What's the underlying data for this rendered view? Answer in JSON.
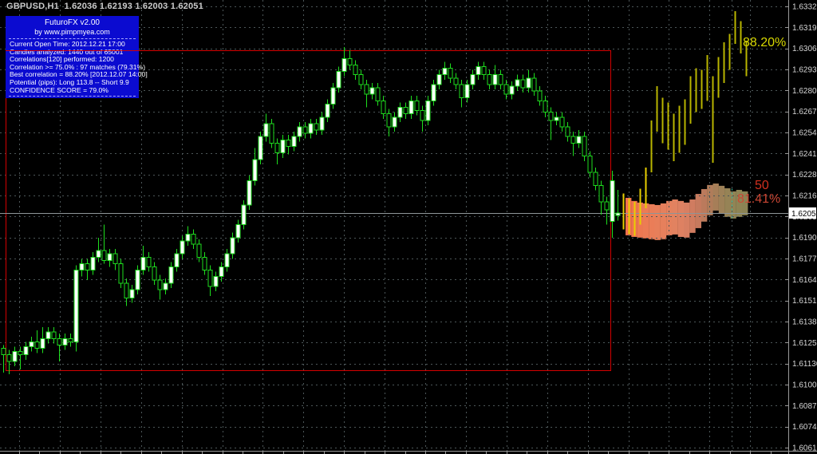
{
  "window": {
    "title": "GBPUSD,H1  1.62036 1.62193 1.62003 1.62051"
  },
  "panel": {
    "title": "FuturoFX v2.00",
    "subtitle": "by www.pimpmyea.com",
    "lines": [
      "Current Open Time: 2012.12.21 17:00",
      "Candles analyzed: 1440 out of 65001",
      "Correlations[120] performed: 1200",
      "Correlation >= 75.0% : 97 matches (79.31%)",
      "Best correlation = 88.20% [2012.12.07 14:00]",
      "Potential (pips): Long 113.8 -- Short 9.9",
      "CONFIDENCE SCORE = 79.0%"
    ],
    "bg_color": "#0b0bd0",
    "text_color": "#ffffff"
  },
  "labels": {
    "best_match_pct": "88.20%",
    "fifty_level": "50",
    "current_match_pct": "81.41%",
    "best_match_color": "#d8d800",
    "fifty_color": "#d3301e",
    "current_match_color": "#cd4734"
  },
  "colors": {
    "background": "#000000",
    "grid": "#4c5658",
    "candle_outline": "#1ede1e",
    "bull_fill": "#ffffff",
    "bear_fill": "#000000",
    "forecast_near": "#e8cf00",
    "forecast_far": "#b9b500",
    "red_box": "#d40000",
    "current_price_line": "#8e9598",
    "axis_line": "#9a9a9a",
    "axis_text": "#d6d6d6",
    "price_box_bg": "#ffffff",
    "price_box_text": "#000000",
    "band_marker_teal": "#2fbfa6"
  },
  "chart_data": {
    "type": "candlestick",
    "symbol": "GBPUSD",
    "timeframe": "H1",
    "title": "GBPUSD,H1",
    "legend_position": "none",
    "grid": true,
    "price_axis": {
      "top_price": 1.6332,
      "bottom_price": 1.6061,
      "current_price": 1.62051,
      "current_price_label": "1.62051",
      "labels": [
        "1.63320",
        "1.63190",
        "1.63060",
        "1.62930",
        "1.62800",
        "1.62675",
        "1.62545",
        "1.62415",
        "1.62285",
        "1.62160",
        "1.62030",
        "1.61900",
        "1.61770",
        "1.61645",
        "1.61515",
        "1.61385",
        "1.61255",
        "1.61130",
        "1.61000",
        "1.60870",
        "1.60740",
        "1.60610"
      ]
    },
    "ohlc": [
      [
        1.6122,
        1.6124,
        1.6107,
        1.6118
      ],
      [
        1.6118,
        1.6121,
        1.6106,
        1.6114
      ],
      [
        1.6114,
        1.6123,
        1.6111,
        1.612
      ],
      [
        1.612,
        1.6123,
        1.6109,
        1.6118
      ],
      [
        1.6118,
        1.6126,
        1.6115,
        1.6123
      ],
      [
        1.6123,
        1.6129,
        1.612,
        1.6126
      ],
      [
        1.6126,
        1.6133,
        1.6119,
        1.6122
      ],
      [
        1.6122,
        1.6135,
        1.6119,
        1.6128
      ],
      [
        1.6128,
        1.6135,
        1.6125,
        1.6132
      ],
      [
        1.6132,
        1.6135,
        1.6125,
        1.6128
      ],
      [
        1.6128,
        1.6131,
        1.6114,
        1.6124
      ],
      [
        1.6124,
        1.6131,
        1.6121,
        1.6128
      ],
      [
        1.6128,
        1.6131,
        1.6123,
        1.6126
      ],
      [
        1.6126,
        1.6173,
        1.612,
        1.617
      ],
      [
        1.617,
        1.6177,
        1.6166,
        1.6174
      ],
      [
        1.6174,
        1.6177,
        1.6164,
        1.617
      ],
      [
        1.617,
        1.6181,
        1.6167,
        1.6178
      ],
      [
        1.6178,
        1.619,
        1.6175,
        1.6182
      ],
      [
        1.6182,
        1.6198,
        1.6174,
        1.6176
      ],
      [
        1.6176,
        1.6183,
        1.6172,
        1.618
      ],
      [
        1.618,
        1.6183,
        1.617,
        1.6174
      ],
      [
        1.6174,
        1.6177,
        1.6159,
        1.6162
      ],
      [
        1.6162,
        1.6165,
        1.6148,
        1.6153
      ],
      [
        1.6153,
        1.6161,
        1.615,
        1.6158
      ],
      [
        1.6158,
        1.6173,
        1.6155,
        1.617
      ],
      [
        1.617,
        1.6185,
        1.6167,
        1.6178
      ],
      [
        1.6178,
        1.6181,
        1.6169,
        1.6172
      ],
      [
        1.6172,
        1.6175,
        1.6161,
        1.6164
      ],
      [
        1.6164,
        1.6167,
        1.6152,
        1.6158
      ],
      [
        1.6158,
        1.6165,
        1.6155,
        1.6162
      ],
      [
        1.6162,
        1.6175,
        1.6159,
        1.6172
      ],
      [
        1.6172,
        1.6183,
        1.6169,
        1.618
      ],
      [
        1.618,
        1.6191,
        1.6177,
        1.6188
      ],
      [
        1.6188,
        1.6197,
        1.6185,
        1.6192
      ],
      [
        1.6192,
        1.6195,
        1.6183,
        1.6186
      ],
      [
        1.6186,
        1.6189,
        1.6175,
        1.6178
      ],
      [
        1.6178,
        1.6181,
        1.6167,
        1.617
      ],
      [
        1.617,
        1.6173,
        1.6154,
        1.616
      ],
      [
        1.616,
        1.6169,
        1.6157,
        1.6166
      ],
      [
        1.6166,
        1.6175,
        1.6163,
        1.6172
      ],
      [
        1.6172,
        1.6183,
        1.6169,
        1.618
      ],
      [
        1.618,
        1.6193,
        1.6177,
        1.619
      ],
      [
        1.619,
        1.6201,
        1.6187,
        1.6198
      ],
      [
        1.6198,
        1.6213,
        1.6195,
        1.621
      ],
      [
        1.621,
        1.6228,
        1.6207,
        1.6225
      ],
      [
        1.6225,
        1.6245,
        1.6222,
        1.6238
      ],
      [
        1.6238,
        1.6255,
        1.6235,
        1.6252
      ],
      [
        1.6252,
        1.6266,
        1.6249,
        1.626
      ],
      [
        1.626,
        1.6263,
        1.6245,
        1.6248
      ],
      [
        1.6248,
        1.6251,
        1.6235,
        1.6242
      ],
      [
        1.6242,
        1.6253,
        1.6239,
        1.625
      ],
      [
        1.625,
        1.6253,
        1.6241,
        1.6246
      ],
      [
        1.6246,
        1.6255,
        1.6243,
        1.6252
      ],
      [
        1.6252,
        1.6261,
        1.6249,
        1.6258
      ],
      [
        1.6258,
        1.6261,
        1.6251,
        1.6254
      ],
      [
        1.6254,
        1.6263,
        1.6251,
        1.626
      ],
      [
        1.626,
        1.6263,
        1.6253,
        1.6256
      ],
      [
        1.6256,
        1.6267,
        1.6253,
        1.6264
      ],
      [
        1.6264,
        1.6275,
        1.6261,
        1.6272
      ],
      [
        1.6272,
        1.6285,
        1.6269,
        1.6282
      ],
      [
        1.6282,
        1.6295,
        1.6279,
        1.6292
      ],
      [
        1.6292,
        1.6307,
        1.6289,
        1.63
      ],
      [
        1.63,
        1.6305,
        1.6293,
        1.6296
      ],
      [
        1.6296,
        1.6299,
        1.6287,
        1.629
      ],
      [
        1.629,
        1.6293,
        1.6281,
        1.6284
      ],
      [
        1.6284,
        1.6287,
        1.627,
        1.6278
      ],
      [
        1.6278,
        1.6285,
        1.6275,
        1.6282
      ],
      [
        1.6282,
        1.6285,
        1.6271,
        1.6274
      ],
      [
        1.6274,
        1.6277,
        1.6263,
        1.6266
      ],
      [
        1.6266,
        1.6269,
        1.6252,
        1.6258
      ],
      [
        1.6258,
        1.6267,
        1.6255,
        1.6264
      ],
      [
        1.6264,
        1.6273,
        1.6261,
        1.627
      ],
      [
        1.627,
        1.6273,
        1.6263,
        1.6266
      ],
      [
        1.6266,
        1.6277,
        1.6263,
        1.6274
      ],
      [
        1.6274,
        1.6277,
        1.6265,
        1.6268
      ],
      [
        1.6268,
        1.6271,
        1.6255,
        1.6262
      ],
      [
        1.6262,
        1.6277,
        1.6259,
        1.6274
      ],
      [
        1.6274,
        1.6287,
        1.6271,
        1.6284
      ],
      [
        1.6284,
        1.6293,
        1.6281,
        1.629
      ],
      [
        1.629,
        1.6298,
        1.6287,
        1.6294
      ],
      [
        1.6294,
        1.6297,
        1.6285,
        1.6288
      ],
      [
        1.6288,
        1.6291,
        1.6281,
        1.6284
      ],
      [
        1.6284,
        1.6287,
        1.627,
        1.6276
      ],
      [
        1.6276,
        1.6287,
        1.6273,
        1.6284
      ],
      [
        1.6284,
        1.6293,
        1.6281,
        1.629
      ],
      [
        1.629,
        1.6298,
        1.6287,
        1.6295
      ],
      [
        1.6295,
        1.6298,
        1.6287,
        1.629
      ],
      [
        1.629,
        1.6293,
        1.6281,
        1.6284
      ],
      [
        1.6284,
        1.6296,
        1.6281,
        1.629
      ],
      [
        1.629,
        1.6293,
        1.6281,
        1.6284
      ],
      [
        1.6284,
        1.6287,
        1.6275,
        1.6278
      ],
      [
        1.6278,
        1.6286,
        1.6275,
        1.6283
      ],
      [
        1.6283,
        1.629,
        1.628,
        1.6287
      ],
      [
        1.6287,
        1.629,
        1.6279,
        1.6282
      ],
      [
        1.6282,
        1.6293,
        1.6279,
        1.6288
      ],
      [
        1.6288,
        1.6291,
        1.6277,
        1.628
      ],
      [
        1.628,
        1.6283,
        1.6271,
        1.6274
      ],
      [
        1.6274,
        1.6277,
        1.6264,
        1.6267
      ],
      [
        1.6267,
        1.627,
        1.625,
        1.6262
      ],
      [
        1.6262,
        1.6267,
        1.6259,
        1.6264
      ],
      [
        1.6264,
        1.6267,
        1.6255,
        1.6258
      ],
      [
        1.6258,
        1.6261,
        1.6249,
        1.6252
      ],
      [
        1.6252,
        1.6255,
        1.624,
        1.6248
      ],
      [
        1.6248,
        1.6256,
        1.6245,
        1.6252
      ],
      [
        1.6252,
        1.6255,
        1.6237,
        1.624
      ],
      [
        1.624,
        1.6243,
        1.6227,
        1.623
      ],
      [
        1.623,
        1.6233,
        1.6219,
        1.6222
      ],
      [
        1.6222,
        1.6225,
        1.6204,
        1.6212
      ],
      [
        1.6212,
        1.6215,
        1.6198,
        1.6207
      ],
      [
        1.62,
        1.6231,
        1.619,
        1.6225
      ],
      [
        1.62036,
        1.62193,
        1.62003,
        1.62051
      ]
    ],
    "forecast_bars": [
      [
        1.6217,
        1.6195
      ],
      [
        1.6214,
        1.6192
      ],
      [
        1.6212,
        1.6191
      ],
      [
        1.622,
        1.6198
      ],
      [
        1.6233,
        1.6208
      ],
      [
        1.6262,
        1.623
      ],
      [
        1.6283,
        1.6255
      ],
      [
        1.6276,
        1.6248
      ],
      [
        1.6273,
        1.6244
      ],
      [
        1.6266,
        1.6237
      ],
      [
        1.6271,
        1.6242
      ],
      [
        1.6275,
        1.6247
      ],
      [
        1.6289,
        1.626
      ],
      [
        1.6294,
        1.6267
      ],
      [
        1.6293,
        1.6269
      ],
      [
        1.6302,
        1.6274
      ],
      [
        1.6289,
        1.6236
      ],
      [
        1.6301,
        1.6276
      ],
      [
        1.631,
        1.6285
      ],
      [
        1.6315,
        1.6293
      ],
      [
        1.6329,
        1.6309
      ],
      [
        1.6323,
        1.6303
      ],
      [
        1.6311,
        1.6289
      ]
    ],
    "projection_band": {
      "columns": [
        [
          1.62144,
          1.61914
        ],
        [
          1.62125,
          1.61904
        ],
        [
          1.62115,
          1.619
        ],
        [
          1.6211,
          1.61895
        ],
        [
          1.62105,
          1.6189
        ],
        [
          1.621,
          1.61885
        ],
        [
          1.6211,
          1.6189
        ],
        [
          1.62125,
          1.61914
        ],
        [
          1.62134,
          1.61919
        ],
        [
          1.62125,
          1.61904
        ],
        [
          1.62115,
          1.619
        ],
        [
          1.62134,
          1.61929
        ],
        [
          1.62168,
          1.61958
        ],
        [
          1.62198,
          1.61998
        ],
        [
          1.62223,
          1.62037
        ],
        [
          1.62232,
          1.62066
        ],
        [
          1.62218,
          1.62047
        ],
        [
          1.62203,
          1.62027
        ],
        [
          1.62184,
          1.62017
        ],
        [
          1.62193,
          1.62027
        ],
        [
          1.62184,
          1.62037
        ]
      ],
      "colors": [
        "#ef6f4e",
        "#ee744f",
        "#ed7852",
        "#ec7b55",
        "#ea7d58",
        "#e87f5a",
        "#e6805c",
        "#e4815e",
        "#e28260",
        "#de8162",
        "#d87f62",
        "#d07c60",
        "#c67a5e",
        "#bb7a5c",
        "#b07c5a",
        "#a67e58",
        "#9d8158",
        "#968356",
        "#918455",
        "#8e8455",
        "#8b8354"
      ]
    },
    "analysis_box": {
      "left_price_time_note": "red rectangle marks analyzed window"
    }
  }
}
